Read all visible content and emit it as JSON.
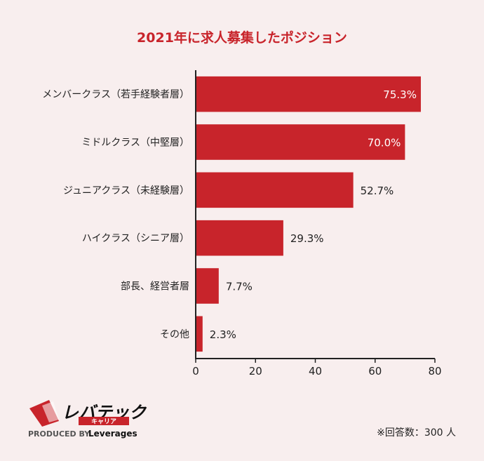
{
  "chart_data": {
    "type": "bar",
    "orientation": "horizontal",
    "title": "2021年に求人募集したポジション",
    "categories": [
      "メンバークラス（若手経験者層）",
      "ミドルクラス（中堅層）",
      "ジュニアクラス（未経験層）",
      "ハイクラス（シニア層）",
      "部長、経営者層",
      "その他"
    ],
    "values": [
      75.3,
      70.0,
      52.7,
      29.3,
      7.7,
      2.3
    ],
    "value_labels": [
      "75.3%",
      "70.0%",
      "52.7%",
      "29.3%",
      "7.7%",
      "2.3%"
    ],
    "xlim": [
      0,
      80
    ],
    "xticks": [
      0,
      20,
      40,
      60,
      80
    ],
    "xlabel": "",
    "ylabel": "",
    "grid": false,
    "bar_color": "#c8242b"
  },
  "logo": {
    "brand": "レバテック",
    "sub": "キャリア",
    "credit_prefix": "PRODUCED BY",
    "credit_brand": "Leverages",
    "accent_color": "#c8242b"
  },
  "footnote": "※回答数：300 人"
}
